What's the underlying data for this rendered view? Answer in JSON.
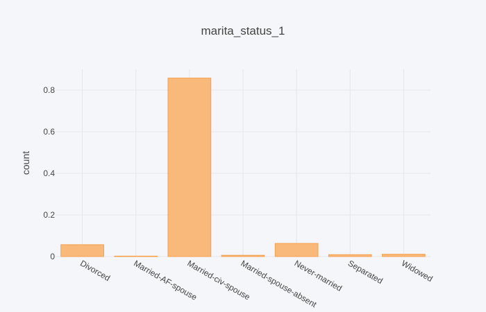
{
  "chart_data": {
    "type": "bar",
    "title": "marita_status_1",
    "xlabel": "",
    "ylabel": "count",
    "categories": [
      "Divorced",
      "Married-AF-spouse",
      "Married-civ-spouse",
      "Married-spouse-absent",
      "Never-married",
      "Separated",
      "Widowed"
    ],
    "values": [
      0.057,
      0.002,
      0.858,
      0.006,
      0.063,
      0.009,
      0.011
    ],
    "ylim": [
      0,
      0.9
    ],
    "yticks": [
      0,
      0.2,
      0.4,
      0.6,
      0.8
    ],
    "ytick_labels": [
      "0",
      "0.2",
      "0.4",
      "0.6",
      "0.8"
    ],
    "grid": true,
    "legend": "none",
    "colors": {
      "bar_fill": "#f9b97b",
      "bar_stroke": "#f6a04d",
      "grid": "#e4e6eb",
      "background": "#f5f6f9",
      "text": "#444444"
    }
  }
}
